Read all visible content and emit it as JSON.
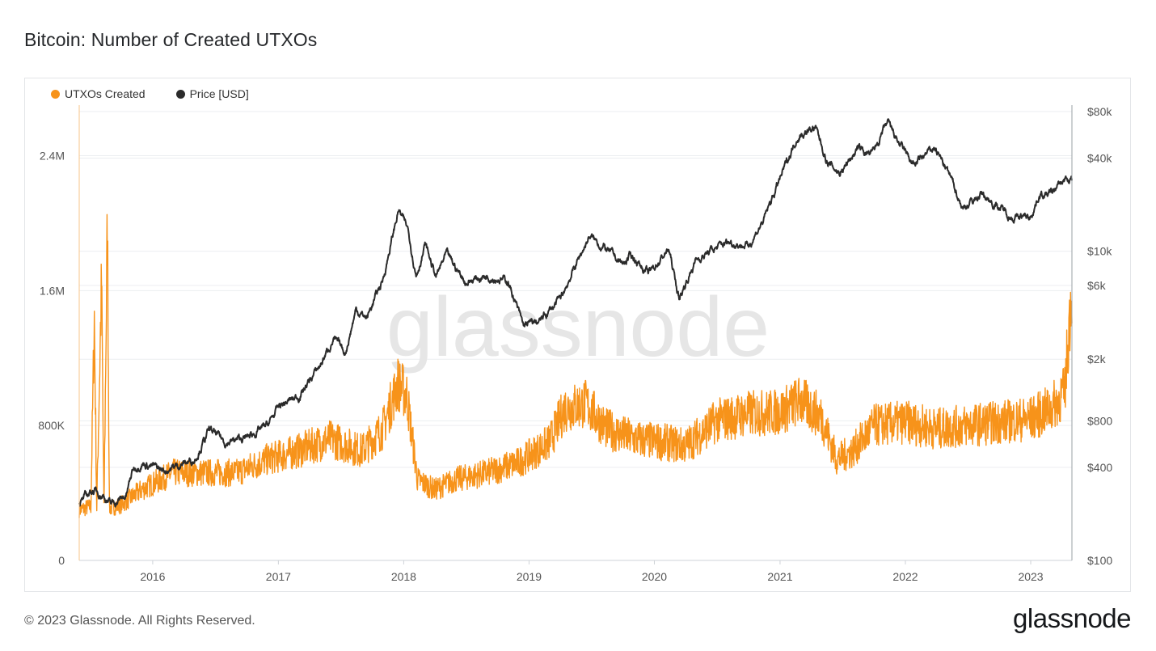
{
  "header": {
    "title": "Bitcoin: Number of Created UTXOs"
  },
  "footer": {
    "copyright": "© 2023 Glassnode. All Rights Reserved.",
    "brand": "glassnode"
  },
  "watermark": "glassnode",
  "colors": {
    "utxo": "#f7931a",
    "price": "#2b2b2b",
    "grid": "#eceef1",
    "axis_text": "#555555"
  },
  "chart_data": {
    "type": "line",
    "title": "Bitcoin: Number of Created UTXOs",
    "legend": {
      "placement": "top-left",
      "entries": [
        "UTXOs Created",
        "Price [USD]"
      ]
    },
    "grid": true,
    "x_ticks": [
      "2016",
      "2017",
      "2018",
      "2019",
      "2020",
      "2021",
      "2022",
      "2023"
    ],
    "x_range": [
      "2015-06",
      "2023-05"
    ],
    "y_left": {
      "ticks": [
        "0",
        "800K",
        "1.6M",
        "2.4M"
      ],
      "range": [
        0,
        2700000
      ]
    },
    "y_right": {
      "scale": "log",
      "ticks": [
        "$100",
        "$400",
        "$800",
        "$2k",
        "$6k",
        "$10k",
        "$40k",
        "$80k"
      ],
      "range": [
        100,
        88000
      ]
    },
    "series": [
      {
        "name": "UTXOs Created",
        "axis": "left",
        "color": "#f7931a",
        "points": [
          [
            "2015-06-01",
            300000
          ],
          [
            "2015-07-05",
            320000
          ],
          [
            "2015-07-15",
            1450000
          ],
          [
            "2015-07-22",
            310000
          ],
          [
            "2015-08-05",
            1650000
          ],
          [
            "2015-08-12",
            300000
          ],
          [
            "2015-08-22",
            2000000
          ],
          [
            "2015-08-28",
            310000
          ],
          [
            "2015-10-01",
            330000
          ],
          [
            "2015-12-01",
            420000
          ],
          [
            "2016-03-01",
            520000
          ],
          [
            "2016-06-01",
            520000
          ],
          [
            "2016-09-01",
            520000
          ],
          [
            "2016-12-01",
            600000
          ],
          [
            "2017-03-01",
            650000
          ],
          [
            "2017-06-01",
            720000
          ],
          [
            "2017-09-01",
            650000
          ],
          [
            "2017-11-01",
            780000
          ],
          [
            "2017-12-15",
            1050000
          ],
          [
            "2018-01-10",
            980000
          ],
          [
            "2018-02-10",
            480000
          ],
          [
            "2018-04-01",
            420000
          ],
          [
            "2018-06-01",
            480000
          ],
          [
            "2018-09-01",
            520000
          ],
          [
            "2018-12-01",
            580000
          ],
          [
            "2019-03-01",
            700000
          ],
          [
            "2019-04-15",
            900000
          ],
          [
            "2019-06-15",
            930000
          ],
          [
            "2019-08-15",
            780000
          ],
          [
            "2019-11-01",
            720000
          ],
          [
            "2020-02-01",
            700000
          ],
          [
            "2020-04-01",
            680000
          ],
          [
            "2020-07-01",
            830000
          ],
          [
            "2020-10-01",
            870000
          ],
          [
            "2021-01-01",
            880000
          ],
          [
            "2021-03-01",
            950000
          ],
          [
            "2021-05-01",
            850000
          ],
          [
            "2021-06-15",
            600000
          ],
          [
            "2021-08-01",
            650000
          ],
          [
            "2021-10-01",
            800000
          ],
          [
            "2022-01-01",
            820000
          ],
          [
            "2022-04-01",
            780000
          ],
          [
            "2022-07-01",
            800000
          ],
          [
            "2022-10-01",
            820000
          ],
          [
            "2023-01-01",
            840000
          ],
          [
            "2023-03-01",
            900000
          ],
          [
            "2023-04-10",
            1000000
          ],
          [
            "2023-05-01",
            1650000
          ]
        ]
      },
      {
        "name": "Price [USD]",
        "axis": "right",
        "color": "#2b2b2b",
        "points": [
          [
            "2015-06-01",
            230
          ],
          [
            "2015-07-10",
            285
          ],
          [
            "2015-08-10",
            265
          ],
          [
            "2015-09-01",
            230
          ],
          [
            "2015-10-15",
            260
          ],
          [
            "2015-11-05",
            390
          ],
          [
            "2015-12-01",
            430
          ],
          [
            "2016-02-01",
            380
          ],
          [
            "2016-05-01",
            450
          ],
          [
            "2016-06-15",
            700
          ],
          [
            "2016-08-01",
            580
          ],
          [
            "2016-10-01",
            620
          ],
          [
            "2016-12-01",
            750
          ],
          [
            "2017-01-05",
            1000
          ],
          [
            "2017-03-01",
            1150
          ],
          [
            "2017-05-01",
            1800
          ],
          [
            "2017-06-10",
            2700
          ],
          [
            "2017-07-15",
            2200
          ],
          [
            "2017-08-15",
            4200
          ],
          [
            "2017-09-15",
            3700
          ],
          [
            "2017-11-01",
            6500
          ],
          [
            "2017-12-17",
            18500
          ],
          [
            "2018-01-15",
            13500
          ],
          [
            "2018-02-06",
            7000
          ],
          [
            "2018-03-05",
            11000
          ],
          [
            "2018-04-05",
            6800
          ],
          [
            "2018-05-05",
            9500
          ],
          [
            "2018-07-01",
            6300
          ],
          [
            "2018-09-01",
            7000
          ],
          [
            "2018-11-01",
            6400
          ],
          [
            "2018-12-15",
            3300
          ],
          [
            "2019-02-01",
            3500
          ],
          [
            "2019-04-05",
            5000
          ],
          [
            "2019-05-15",
            8000
          ],
          [
            "2019-06-26",
            12500
          ],
          [
            "2019-08-15",
            10200
          ],
          [
            "2019-10-01",
            8200
          ],
          [
            "2019-10-27",
            9400
          ],
          [
            "2019-12-15",
            7100
          ],
          [
            "2020-02-12",
            10300
          ],
          [
            "2020-03-13",
            4900
          ],
          [
            "2020-05-01",
            8800
          ],
          [
            "2020-08-01",
            11500
          ],
          [
            "2020-10-01",
            10800
          ],
          [
            "2020-11-15",
            16000
          ],
          [
            "2020-12-31",
            29000
          ],
          [
            "2021-02-20",
            55000
          ],
          [
            "2021-04-14",
            63000
          ],
          [
            "2021-05-20",
            37000
          ],
          [
            "2021-06-25",
            32000
          ],
          [
            "2021-08-15",
            46000
          ],
          [
            "2021-09-25",
            42000
          ],
          [
            "2021-11-10",
            67000
          ],
          [
            "2021-12-20",
            47000
          ],
          [
            "2022-01-25",
            36000
          ],
          [
            "2022-03-28",
            47000
          ],
          [
            "2022-05-15",
            29000
          ],
          [
            "2022-06-18",
            19000
          ],
          [
            "2022-08-10",
            23500
          ],
          [
            "2022-10-01",
            19300
          ],
          [
            "2022-11-10",
            16500
          ],
          [
            "2022-12-31",
            16600
          ],
          [
            "2023-01-25",
            23000
          ],
          [
            "2023-03-01",
            23500
          ],
          [
            "2023-04-10",
            29000
          ],
          [
            "2023-05-01",
            28500
          ]
        ]
      }
    ]
  }
}
